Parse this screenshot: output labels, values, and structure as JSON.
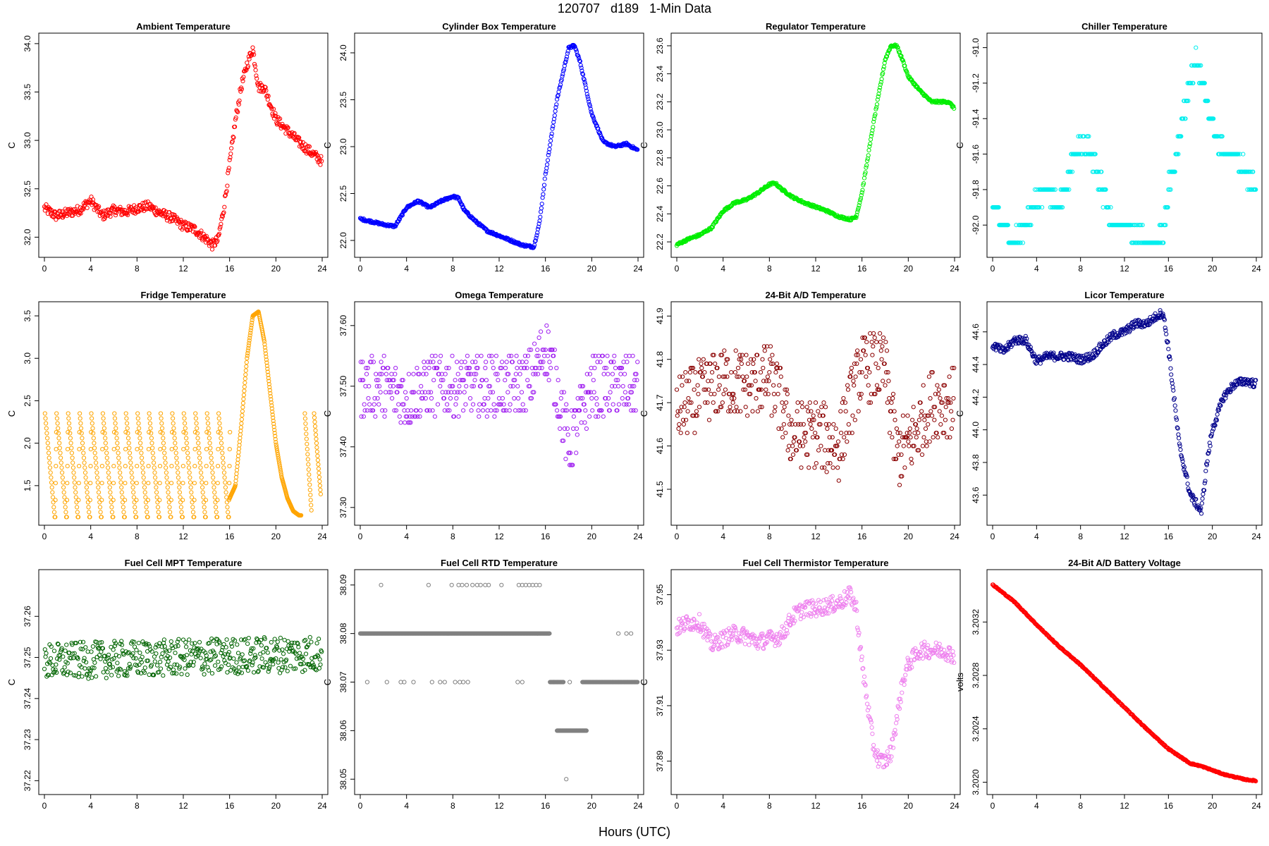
{
  "figure": {
    "title": "120707   d189   1-Min Data",
    "xlabel": "Hours (UTC)"
  },
  "chart_data": [
    {
      "type": "scatter",
      "title": "Ambient Temperature",
      "ylabel": "C",
      "color": "#ff0000",
      "xlim": [
        0,
        24
      ],
      "xticks": [
        "0",
        "4",
        "8",
        "12",
        "16",
        "20",
        "24"
      ],
      "ylim": [
        31.85,
        34.05
      ],
      "yticks": [
        "32.0",
        "32.5",
        "33.0",
        "33.5",
        "34.0"
      ],
      "x": [
        0,
        1,
        2,
        3,
        4,
        5,
        6,
        7,
        8,
        9,
        10,
        11,
        12,
        13,
        14,
        14.5,
        15,
        15.5,
        16,
        16.5,
        17,
        17.5,
        18,
        18.5,
        19,
        19.5,
        20,
        21,
        22,
        23,
        24
      ],
      "y": [
        32.3,
        32.22,
        32.25,
        32.28,
        32.38,
        32.22,
        32.28,
        32.26,
        32.3,
        32.32,
        32.25,
        32.2,
        32.12,
        32.08,
        31.98,
        31.92,
        31.97,
        32.3,
        32.75,
        33.2,
        33.55,
        33.78,
        33.95,
        33.55,
        33.55,
        33.38,
        33.22,
        33.1,
        32.98,
        32.88,
        32.78
      ],
      "noise": 0.05
    },
    {
      "type": "scatter",
      "title": "Cylinder Box Temperature",
      "ylabel": "C",
      "color": "#0000ff",
      "xlim": [
        0,
        24
      ],
      "xticks": [
        "0",
        "4",
        "8",
        "12",
        "16",
        "20",
        "24"
      ],
      "ylim": [
        21.88,
        24.15
      ],
      "yticks": [
        "22.0",
        "22.5",
        "23.0",
        "23.5",
        "24.0"
      ],
      "x": [
        0,
        1,
        2,
        3,
        4,
        5,
        6,
        7,
        8,
        8.5,
        9,
        10,
        11,
        12,
        13,
        14,
        15,
        15.5,
        16,
        17,
        18,
        18.5,
        19,
        20,
        21,
        22,
        23,
        24
      ],
      "y": [
        22.23,
        22.2,
        22.17,
        22.15,
        22.35,
        22.42,
        22.35,
        22.42,
        22.47,
        22.45,
        22.32,
        22.2,
        22.1,
        22.05,
        22.0,
        21.95,
        21.93,
        22.2,
        22.7,
        23.5,
        24.05,
        24.08,
        23.9,
        23.35,
        23.05,
        23.0,
        23.03,
        22.96
      ],
      "noise": 0.012
    },
    {
      "type": "scatter",
      "title": "Regulator Temperature",
      "ylabel": "C",
      "color": "#00ee00",
      "xlim": [
        0,
        24
      ],
      "xticks": [
        "0",
        "4",
        "8",
        "12",
        "16",
        "20",
        "24"
      ],
      "ylim": [
        22.13,
        23.65
      ],
      "yticks": [
        "22.2",
        "22.4",
        "22.6",
        "22.8",
        "23.0",
        "23.2",
        "23.4",
        "23.6"
      ],
      "x": [
        0,
        1,
        2,
        3,
        4,
        5,
        6,
        7,
        8,
        8.5,
        9,
        10,
        11,
        12,
        13,
        14,
        15,
        15.5,
        16,
        17,
        18,
        18.5,
        19,
        19.5,
        20,
        21,
        22,
        23,
        23.5,
        24
      ],
      "y": [
        22.18,
        22.22,
        22.25,
        22.3,
        22.42,
        22.48,
        22.5,
        22.55,
        22.61,
        22.62,
        22.58,
        22.52,
        22.48,
        22.45,
        22.42,
        22.38,
        22.36,
        22.38,
        22.55,
        23.05,
        23.5,
        23.6,
        23.6,
        23.5,
        23.38,
        23.28,
        23.2,
        23.2,
        23.2,
        23.15
      ],
      "noise": 0.008
    },
    {
      "type": "scatter",
      "title": "Chiller Temperature",
      "ylabel": "C",
      "color": "#00eeee",
      "xlim": [
        0,
        24
      ],
      "xticks": [
        "0",
        "4",
        "8",
        "12",
        "16",
        "20",
        "24"
      ],
      "ylim": [
        -92.15,
        -90.95
      ],
      "yticks": [
        "-91.0",
        "-91.2",
        "-91.4",
        "-91.6",
        "-91.8",
        "-92.0"
      ],
      "x": [
        0,
        1,
        2,
        3,
        4,
        5,
        6,
        7,
        8,
        9,
        10,
        11,
        12,
        13,
        14,
        15,
        15.5,
        16,
        17,
        18,
        18.5,
        19,
        20,
        21,
        22,
        23,
        24
      ],
      "y": [
        -91.9,
        -92.0,
        -92.1,
        -92.0,
        -91.85,
        -91.8,
        -91.9,
        -91.7,
        -91.55,
        -91.6,
        -91.8,
        -92.0,
        -92.0,
        -92.05,
        -92.1,
        -92.1,
        -92.05,
        -91.8,
        -91.5,
        -91.2,
        -91.05,
        -91.2,
        -91.45,
        -91.6,
        -91.6,
        -91.7,
        -91.8
      ],
      "noise": 0.05,
      "quantize": 0.1
    },
    {
      "type": "scatter",
      "title": "Fridge Temperature",
      "ylabel": "C",
      "color": "#ffa500",
      "xlim": [
        0,
        24
      ],
      "xticks": [
        "0",
        "4",
        "8",
        "12",
        "16",
        "20",
        "24"
      ],
      "ylim": [
        1.1,
        3.6
      ],
      "yticks": [
        "1.5",
        "2.0",
        "2.5",
        "3.0",
        "3.5"
      ],
      "x": [
        16,
        16.5,
        17,
        17.5,
        18,
        18.5,
        19,
        19.5,
        20,
        20.5,
        21,
        21.5,
        22
      ],
      "y": [
        1.35,
        1.5,
        2.2,
        3.0,
        3.5,
        3.55,
        3.2,
        2.6,
        2.0,
        1.6,
        1.35,
        1.2,
        1.15
      ],
      "noise": 0.01
    },
    {
      "type": "scatter",
      "title": "Omega Temperature",
      "ylabel": "C",
      "color": "#a020f0",
      "xlim": [
        0,
        24
      ],
      "xticks": [
        "0",
        "4",
        "8",
        "12",
        "16",
        "20",
        "24"
      ],
      "ylim": [
        37.28,
        37.63
      ],
      "yticks": [
        "37.30",
        "37.40",
        "37.50",
        "37.60"
      ],
      "x": [
        0,
        2,
        4,
        6,
        8,
        10,
        12,
        14,
        15,
        16,
        17,
        18,
        19,
        20,
        22,
        24
      ],
      "y": [
        37.5,
        37.5,
        37.48,
        37.5,
        37.5,
        37.5,
        37.5,
        37.5,
        37.52,
        37.57,
        37.5,
        37.4,
        37.45,
        37.5,
        37.5,
        37.5
      ],
      "noise": 0.05,
      "quantize": 0.01
    },
    {
      "type": "scatter",
      "title": "24-Bit A/D Temperature",
      "ylabel": "C",
      "color": "#8b0000",
      "xlim": [
        0,
        24
      ],
      "xticks": [
        "0",
        "4",
        "8",
        "12",
        "16",
        "20",
        "24"
      ],
      "ylim": [
        41.43,
        41.92
      ],
      "yticks": [
        "41.5",
        "41.6",
        "41.7",
        "41.8",
        "41.9"
      ],
      "x": [
        0,
        2,
        4,
        6,
        8,
        9,
        10,
        12,
        14,
        15,
        16,
        18,
        19,
        20,
        22,
        24
      ],
      "y": [
        41.68,
        41.72,
        41.75,
        41.74,
        41.76,
        41.7,
        41.62,
        41.63,
        41.6,
        41.7,
        41.78,
        41.78,
        41.58,
        41.6,
        41.7,
        41.7
      ],
      "noise": 0.08,
      "quantize": 0.01
    },
    {
      "type": "scatter",
      "title": "Licor Temperature",
      "ylabel": "C",
      "color": "#00008b",
      "xlim": [
        0,
        24
      ],
      "xticks": [
        "0",
        "4",
        "8",
        "12",
        "16",
        "20",
        "24"
      ],
      "ylim": [
        43.45,
        44.75
      ],
      "yticks": [
        "43.6",
        "43.8",
        "44.0",
        "44.2",
        "44.4",
        "44.6"
      ],
      "x": [
        0,
        1,
        2,
        3,
        4,
        5,
        6,
        7,
        8,
        9,
        10,
        11,
        12,
        13,
        14,
        15,
        15.5,
        16,
        17,
        18,
        18.5,
        19,
        19.5,
        20,
        21,
        22,
        23,
        24
      ],
      "y": [
        44.52,
        44.48,
        44.55,
        44.55,
        44.42,
        44.45,
        44.45,
        44.45,
        44.43,
        44.45,
        44.52,
        44.58,
        44.6,
        44.65,
        44.65,
        44.7,
        44.72,
        44.5,
        43.9,
        43.6,
        43.55,
        43.5,
        43.8,
        44.0,
        44.2,
        44.28,
        44.3,
        44.28
      ],
      "noise": 0.025
    },
    {
      "type": "scatter",
      "title": "Fuel Cell MPT Temperature",
      "ylabel": "C",
      "color": "#006400",
      "xlim": [
        0,
        24
      ],
      "xticks": [
        "0",
        "4",
        "8",
        "12",
        "16",
        "20",
        "24"
      ],
      "ylim": [
        37.218,
        37.27
      ],
      "yticks": [
        "37.22",
        "37.23",
        "37.24",
        "37.25",
        "37.26"
      ],
      "x": [
        0,
        24
      ],
      "y": [
        37.249,
        37.251
      ],
      "noise": 0.0045
    },
    {
      "type": "scatter",
      "title": "Fuel Cell RTD Temperature",
      "ylabel": "C",
      "color": "#808080",
      "xlim": [
        0,
        24
      ],
      "xticks": [
        "0",
        "4",
        "8",
        "12",
        "16",
        "20",
        "24"
      ],
      "ylim": [
        38.048,
        38.092
      ],
      "yticks": [
        "38.05",
        "38.06",
        "38.07",
        "38.08",
        "38.09"
      ],
      "x": [
        0,
        24
      ],
      "y": [
        38.08,
        38.07
      ],
      "noise": 0,
      "quantize": 0.01
    },
    {
      "type": "scatter",
      "title": "Fuel Cell Thermistor Temperature",
      "ylabel": "C",
      "color": "#ee82ee",
      "xlim": [
        0,
        24
      ],
      "xticks": [
        "0",
        "4",
        "8",
        "12",
        "16",
        "20",
        "24"
      ],
      "ylim": [
        37.88,
        37.957
      ],
      "yticks": [
        "37.89",
        "37.91",
        "37.93",
        "37.95"
      ],
      "x": [
        0,
        1,
        2,
        3,
        4,
        5,
        6,
        7,
        8,
        9,
        10,
        11,
        12,
        13,
        14,
        15,
        15.5,
        16,
        17,
        17.5,
        18,
        18.5,
        19,
        19.5,
        20,
        21,
        22,
        23,
        24
      ],
      "y": [
        37.938,
        37.94,
        37.94,
        37.932,
        37.934,
        37.936,
        37.935,
        37.933,
        37.934,
        37.935,
        37.942,
        37.945,
        37.945,
        37.946,
        37.947,
        37.95,
        37.945,
        37.925,
        37.895,
        37.89,
        37.89,
        37.893,
        37.905,
        37.918,
        37.925,
        37.93,
        37.93,
        37.93,
        37.928
      ],
      "noise": 0.003
    },
    {
      "type": "scatter",
      "title": "24-Bit A/D Battery Voltage",
      "ylabel": "volts",
      "color": "#ff0000",
      "xlim": [
        0,
        24
      ],
      "xticks": [
        "0",
        "4",
        "8",
        "12",
        "16",
        "20",
        "24"
      ],
      "ylim": [
        3.20195,
        3.20355
      ],
      "yticks": [
        "3.2020",
        "3.2024",
        "3.2028",
        "3.2032"
      ],
      "x": [
        0,
        2,
        4,
        6,
        8,
        10,
        12,
        14,
        16,
        18,
        19,
        20,
        21,
        22,
        23,
        24
      ],
      "y": [
        3.20348,
        3.20335,
        3.20318,
        3.20302,
        3.20288,
        3.20272,
        3.20256,
        3.2024,
        3.20225,
        3.20214,
        3.20212,
        3.20209,
        3.20206,
        3.20204,
        3.20202,
        3.20201
      ],
      "noise": 4e-06
    }
  ]
}
